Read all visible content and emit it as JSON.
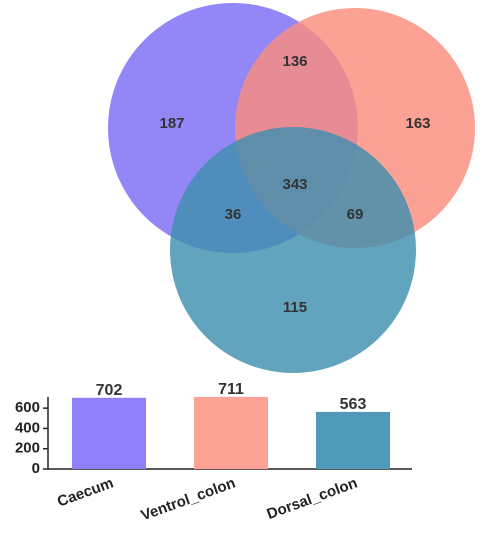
{
  "chart_data": [
    {
      "type": "venn",
      "sets": [
        {
          "name": "Caecum",
          "color": "#7b6cf6"
        },
        {
          "name": "Ventrol_colon",
          "color": "#fa8e7e"
        },
        {
          "name": "Dorsal_colon",
          "color": "#3f8fae"
        }
      ],
      "regions": [
        {
          "sets": [
            "Caecum"
          ],
          "value": 187
        },
        {
          "sets": [
            "Caecum",
            "Ventrol_colon"
          ],
          "value": 136
        },
        {
          "sets": [
            "Ventrol_colon"
          ],
          "value": 163
        },
        {
          "sets": [
            "Caecum",
            "Ventrol_colon",
            "Dorsal_colon"
          ],
          "value": 343
        },
        {
          "sets": [
            "Caecum",
            "Dorsal_colon"
          ],
          "value": 36
        },
        {
          "sets": [
            "Ventrol_colon",
            "Dorsal_colon"
          ],
          "value": 69
        },
        {
          "sets": [
            "Dorsal_colon"
          ],
          "value": 115
        }
      ]
    },
    {
      "type": "bar",
      "categories": [
        "Caecum",
        "Ventrol_colon",
        "Dorsal_colon"
      ],
      "values": [
        702,
        711,
        563
      ],
      "colors": [
        "#8f80f8",
        "#fca395",
        "#4f9ab8"
      ],
      "ylim": [
        0,
        710
      ],
      "yticks": [
        0,
        200,
        400,
        600
      ]
    }
  ]
}
